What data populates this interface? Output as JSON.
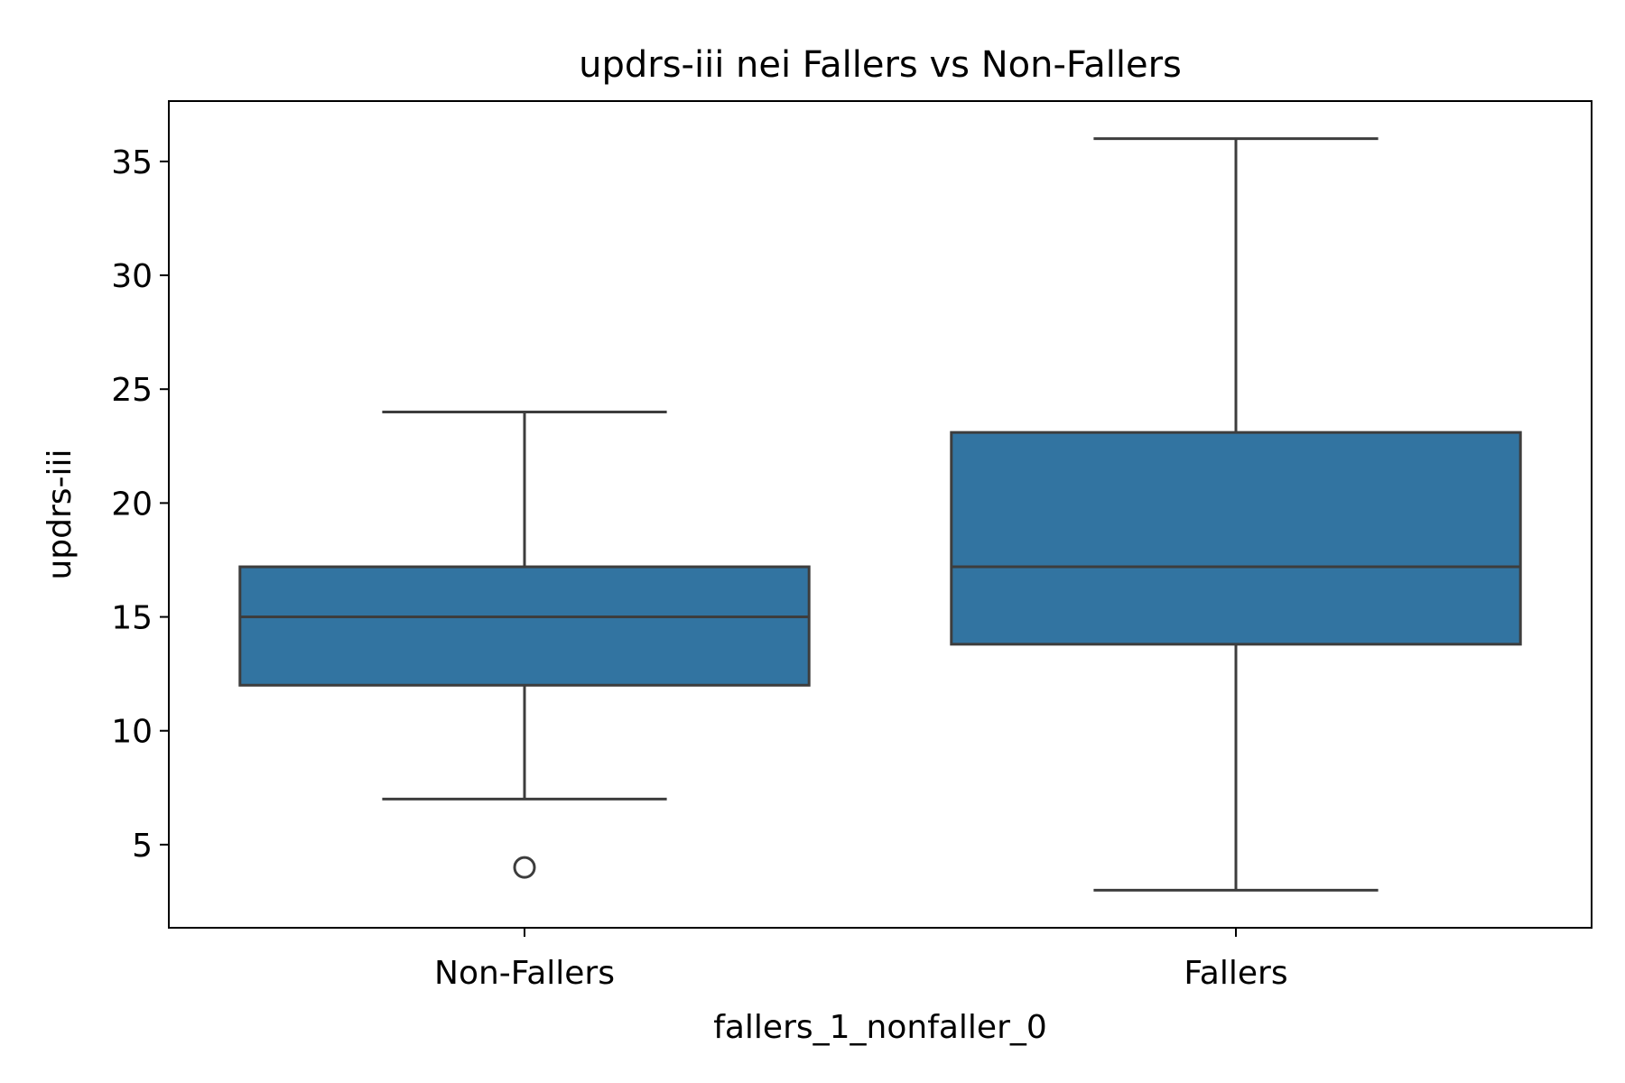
{
  "chart_data": {
    "type": "box",
    "title": "updrs-iii nei Fallers vs Non-Fallers",
    "xlabel": "fallers_1_nonfaller_0",
    "ylabel": "updrs-iii",
    "categories": [
      "Non-Fallers",
      "Fallers"
    ],
    "ylim": [
      1.35,
      37.65
    ],
    "yticks": [
      5,
      10,
      15,
      20,
      25,
      30,
      35
    ],
    "boxes": [
      {
        "category": "Non-Fallers",
        "whisker_low": 7,
        "q1": 12,
        "median": 15,
        "q3": 17.2,
        "whisker_high": 24,
        "outliers": [
          4
        ]
      },
      {
        "category": "Fallers",
        "whisker_low": 3,
        "q1": 13.8,
        "median": 17.2,
        "q3": 23.1,
        "whisker_high": 36,
        "outliers": []
      }
    ],
    "box_color": "#3274a1",
    "line_color": "#3d3d3d",
    "grid": false,
    "legend": false
  }
}
